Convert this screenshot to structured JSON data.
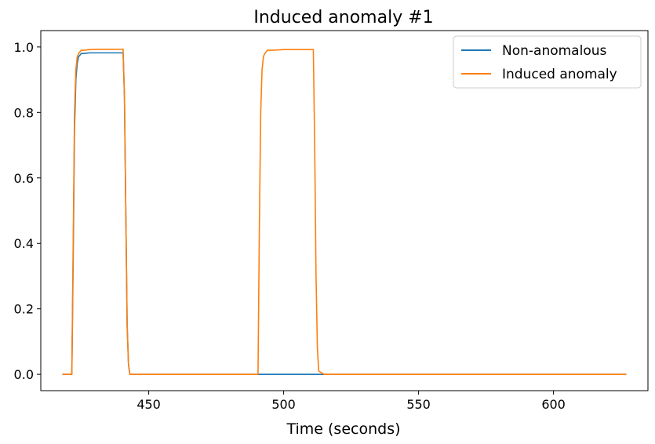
{
  "chart_data": {
    "type": "line",
    "title": "Induced anomaly #1",
    "xlabel": "Time (seconds)",
    "ylabel": "",
    "xlim": [
      410,
      635
    ],
    "ylim": [
      -0.05,
      1.05
    ],
    "xticks": [
      450,
      500,
      550,
      600
    ],
    "yticks": [
      0.0,
      0.2,
      0.4,
      0.6,
      0.8,
      1.0
    ],
    "ytick_labels": [
      "0.0",
      "0.2",
      "0.4",
      "0.6",
      "0.8",
      "1.0"
    ],
    "legend_position": "top-right",
    "grid": false,
    "series": [
      {
        "name": "Non-anomalous",
        "color": "#1f77b4",
        "x": [
          418,
          421.5,
          422,
          422.5,
          423,
          423.5,
          424,
          425,
          426,
          428,
          432,
          436,
          440.5,
          441,
          441.5,
          442,
          442.5,
          443,
          445,
          490,
          500,
          512,
          550,
          600,
          627
        ],
        "y": [
          0,
          0,
          0.35,
          0.75,
          0.9,
          0.95,
          0.97,
          0.98,
          0.98,
          0.982,
          0.982,
          0.982,
          0.982,
          0.85,
          0.5,
          0.15,
          0.03,
          0,
          0,
          0,
          0,
          0,
          0,
          0,
          0
        ]
      },
      {
        "name": "Induced anomaly",
        "color": "#ff7f0e",
        "x": [
          418,
          421.5,
          422,
          422.5,
          423,
          423.5,
          424,
          425,
          426,
          428,
          432,
          436,
          440.5,
          441,
          441.5,
          442,
          442.5,
          443,
          445,
          490.5,
          491,
          491.5,
          492,
          492.5,
          493,
          494,
          496,
          500,
          505,
          510,
          511,
          511.5,
          512,
          512.5,
          513,
          515,
          550,
          600,
          627
        ],
        "y": [
          0,
          0,
          0.4,
          0.8,
          0.93,
          0.97,
          0.98,
          0.99,
          0.99,
          0.992,
          0.993,
          0.993,
          0.993,
          0.85,
          0.5,
          0.15,
          0.03,
          0,
          0,
          0,
          0.45,
          0.8,
          0.93,
          0.97,
          0.98,
          0.99,
          0.99,
          0.992,
          0.992,
          0.992,
          0.992,
          0.7,
          0.3,
          0.08,
          0.01,
          0,
          0,
          0,
          0
        ]
      }
    ]
  }
}
